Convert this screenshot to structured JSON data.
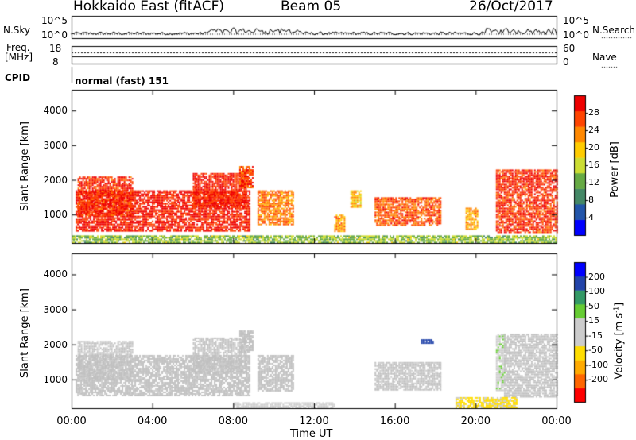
{
  "header": {
    "station": "Hokkaido East (fitACF)",
    "beam": "Beam 05",
    "date": "26/Oct/2017"
  },
  "noise_panel": {
    "left_label": "N.Sky",
    "right_label": "N.Search",
    "left_ticks": [
      "10^5",
      "10^0"
    ],
    "right_ticks": [
      "10^5",
      "10^0"
    ]
  },
  "freq_panel": {
    "left_label_1": "Freq.",
    "left_label_2": "[MHz]",
    "right_label": "Nave",
    "left_ticks": [
      "18",
      "8"
    ],
    "right_ticks": [
      "60",
      "0"
    ]
  },
  "cpid": {
    "label": "CPID",
    "value": "normal (fast) 151"
  },
  "colors": {
    "power_scale": [
      "#0000ff",
      "#2255aa",
      "#448866",
      "#66aa44",
      "#ccdd33",
      "#ffcc00",
      "#ff8800",
      "#ff4400",
      "#ee0000"
    ],
    "velocity_scale": [
      "#ff0000",
      "#ff6600",
      "#ffaa00",
      "#ffdd00",
      "#cccccc",
      "#cccccc",
      "#66cc33",
      "#339966",
      "#2244aa",
      "#0000ff"
    ],
    "ground_scatter": "#c0c0c0"
  },
  "chart_data": [
    {
      "type": "heatmap",
      "title": "Power",
      "xlabel": "Time UT",
      "ylabel": "Slant Range [km]",
      "x_ticks": [
        "00:00",
        "04:00",
        "08:00",
        "12:00",
        "16:00",
        "20:00",
        "00:00"
      ],
      "y_ticks": [
        "1000",
        "2000",
        "3000",
        "4000"
      ],
      "xlim_hours": [
        0,
        24
      ],
      "ylim_km": [
        180,
        4600
      ],
      "colorbar_label": "Power [dB]",
      "colorbar_ticks": [
        "28",
        "24",
        "20",
        "16",
        "12",
        "8",
        "4"
      ],
      "colorbar_range": [
        0,
        32
      ],
      "regions": [
        {
          "t0": 0.2,
          "t1": 8.8,
          "r0": 550,
          "r1": 1700,
          "level": 29
        },
        {
          "t0": 6.0,
          "t1": 8.6,
          "r0": 1200,
          "r1": 2200,
          "level": 29
        },
        {
          "t0": 0.3,
          "t1": 3.0,
          "r0": 1000,
          "r1": 2100,
          "level": 28
        },
        {
          "t0": 8.3,
          "t1": 9.0,
          "r0": 1800,
          "r1": 2400,
          "level": 27
        },
        {
          "t0": 9.2,
          "t1": 11.0,
          "r0": 700,
          "r1": 1700,
          "level": 24
        },
        {
          "t0": 13.0,
          "t1": 13.5,
          "r0": 500,
          "r1": 1000,
          "level": 22
        },
        {
          "t0": 13.8,
          "t1": 14.3,
          "r0": 1200,
          "r1": 1700,
          "level": 20
        },
        {
          "t0": 15.0,
          "t1": 18.3,
          "r0": 700,
          "r1": 1500,
          "level": 26
        },
        {
          "t0": 19.5,
          "t1": 20.1,
          "r0": 600,
          "r1": 1200,
          "level": 22
        },
        {
          "t0": 21.0,
          "t1": 24.0,
          "r0": 500,
          "r1": 2300,
          "level": 28
        },
        {
          "t0": 0.0,
          "t1": 24.0,
          "r0": 180,
          "r1": 400,
          "level": 14
        }
      ]
    },
    {
      "type": "heatmap",
      "title": "Velocity",
      "xlabel": "Time UT",
      "ylabel": "Slant Range [km]",
      "x_ticks": [
        "00:00",
        "04:00",
        "08:00",
        "12:00",
        "16:00",
        "20:00",
        "00:00"
      ],
      "y_ticks": [
        "1000",
        "2000",
        "3000",
        "4000"
      ],
      "xlim_hours": [
        0,
        24
      ],
      "ylim_km": [
        180,
        4600
      ],
      "colorbar_label": "Velocity [m s^-1]",
      "colorbar_ticks": [
        "200",
        "100",
        "50",
        "15",
        "-15",
        "-50",
        "-100",
        "-200"
      ],
      "colorbar_range": [
        -250,
        250
      ],
      "regions": [
        {
          "t0": 0.2,
          "t1": 8.8,
          "r0": 550,
          "r1": 1700,
          "level": 0
        },
        {
          "t0": 6.0,
          "t1": 8.6,
          "r0": 1200,
          "r1": 2200,
          "level": 0
        },
        {
          "t0": 0.3,
          "t1": 3.0,
          "r0": 1000,
          "r1": 2100,
          "level": 0
        },
        {
          "t0": 8.3,
          "t1": 9.0,
          "r0": 1800,
          "r1": 2400,
          "level": 0
        },
        {
          "t0": 9.2,
          "t1": 11.0,
          "r0": 700,
          "r1": 1700,
          "level": 0
        },
        {
          "t0": 15.0,
          "t1": 18.3,
          "r0": 700,
          "r1": 1500,
          "level": 0
        },
        {
          "t0": 17.3,
          "t1": 17.9,
          "r0": 2050,
          "r1": 2150,
          "level": 180
        },
        {
          "t0": 21.0,
          "t1": 21.4,
          "r0": 700,
          "r1": 2300,
          "level": 40
        },
        {
          "t0": 21.4,
          "t1": 24.0,
          "r0": 500,
          "r1": 2300,
          "level": 0
        },
        {
          "t0": 19.0,
          "t1": 22.0,
          "r0": 200,
          "r1": 500,
          "level": -60
        },
        {
          "t0": 8.0,
          "t1": 13.0,
          "r0": 200,
          "r1": 350,
          "level": 30
        }
      ]
    }
  ]
}
